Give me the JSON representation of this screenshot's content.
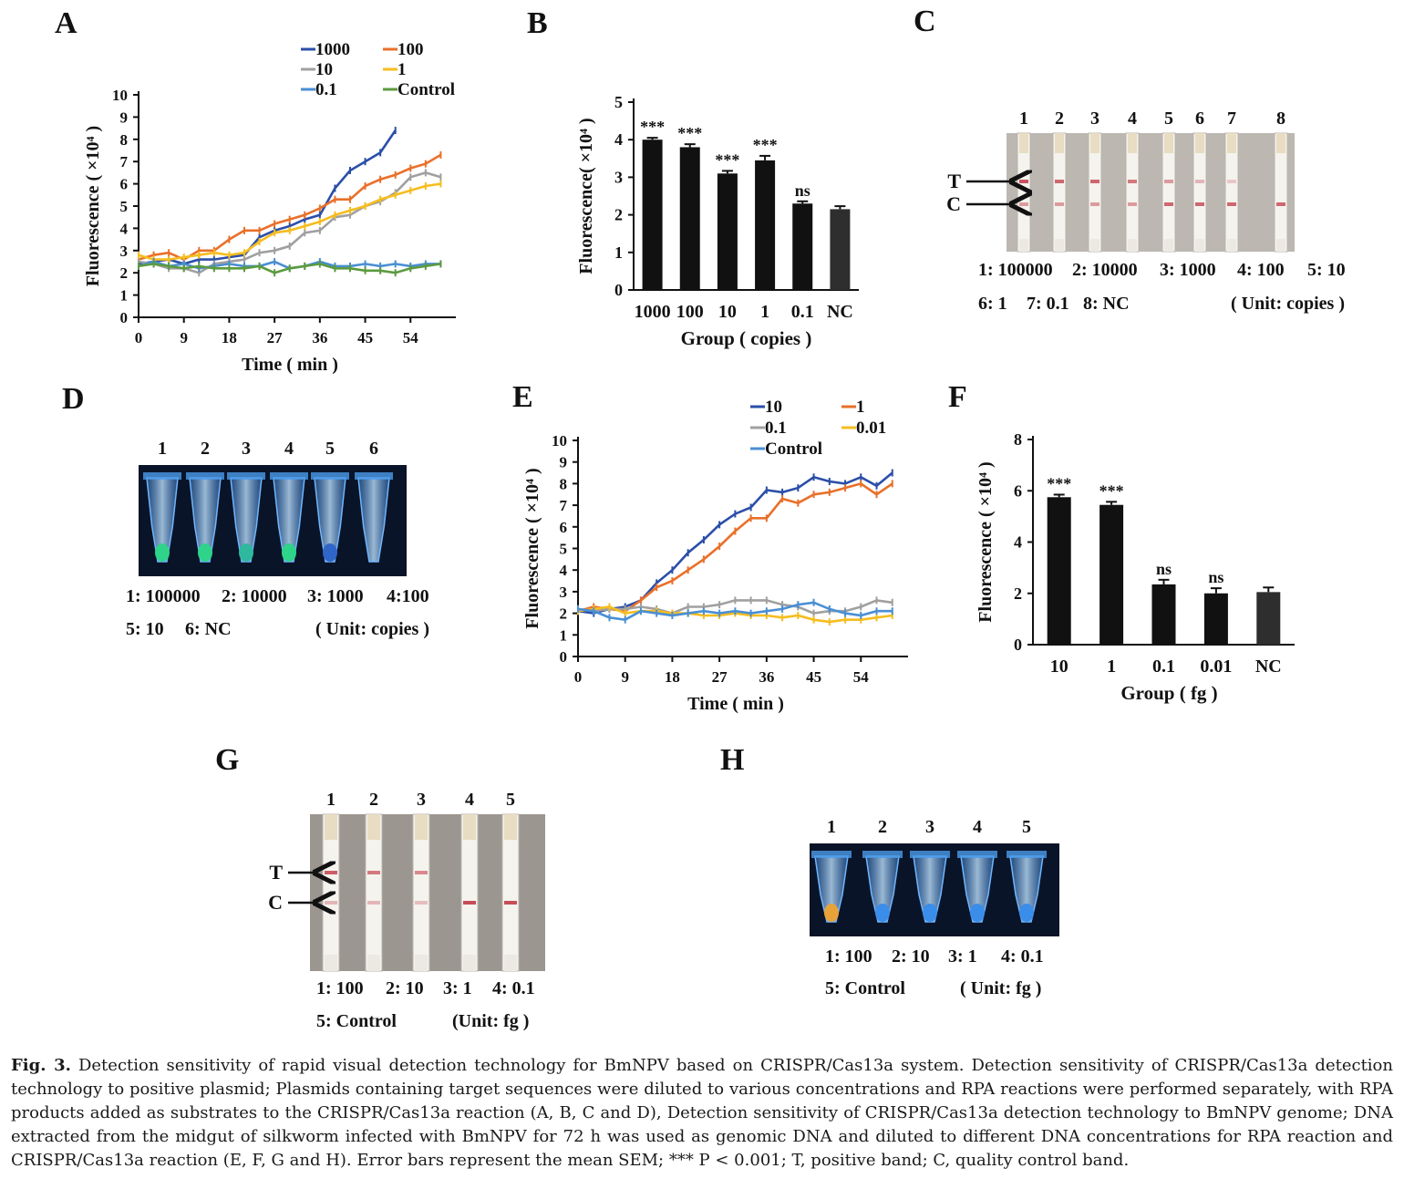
{
  "figure": {
    "panels": {
      "A": {
        "letter": "A",
        "chart_data": {
          "type": "line",
          "xlabel": "Time ( min )",
          "ylabel": "Fluorescence ( ×10⁴ )",
          "xlim": [
            0,
            63
          ],
          "ylim": [
            0,
            10
          ],
          "xticks": [
            0,
            9,
            18,
            27,
            36,
            45,
            54
          ],
          "yticks": [
            0,
            1,
            2,
            3,
            4,
            5,
            6,
            7,
            8,
            9,
            10
          ],
          "x": [
            0,
            3,
            6,
            9,
            12,
            15,
            18,
            21,
            24,
            27,
            30,
            33,
            36,
            39,
            42,
            45,
            48,
            51,
            54,
            57,
            60
          ],
          "series": [
            {
              "name": "1000",
              "color": "#2b4fa8",
              "values": [
                2.4,
                2.5,
                2.6,
                2.4,
                2.6,
                2.6,
                2.7,
                2.8,
                3.6,
                3.9,
                4.1,
                4.4,
                4.6,
                5.8,
                6.6,
                7.0,
                7.4,
                8.4,
                null,
                null,
                null
              ]
            },
            {
              "name": "100",
              "color": "#e9702a",
              "values": [
                2.6,
                2.8,
                2.9,
                2.6,
                3.0,
                3.0,
                3.5,
                3.9,
                3.9,
                4.2,
                4.4,
                4.6,
                4.9,
                5.3,
                5.3,
                5.9,
                6.2,
                6.4,
                6.7,
                6.9,
                7.3
              ]
            },
            {
              "name": "10",
              "color": "#a0a0a0",
              "values": [
                2.5,
                2.4,
                2.2,
                2.2,
                2.0,
                2.4,
                2.5,
                2.6,
                2.9,
                3.0,
                3.2,
                3.8,
                3.9,
                4.5,
                4.6,
                5.0,
                5.2,
                5.6,
                6.3,
                6.5,
                6.3
              ]
            },
            {
              "name": "1",
              "color": "#f5bd1f",
              "values": [
                2.8,
                2.6,
                2.6,
                2.7,
                2.8,
                2.9,
                2.8,
                2.9,
                3.4,
                3.8,
                3.9,
                4.1,
                4.3,
                4.6,
                4.8,
                5.0,
                5.3,
                5.5,
                5.7,
                5.9,
                6.0
              ]
            },
            {
              "name": "0.1",
              "color": "#4a8fd4",
              "values": [
                2.3,
                2.5,
                2.3,
                2.4,
                2.2,
                2.3,
                2.4,
                2.3,
                2.3,
                2.5,
                2.2,
                2.3,
                2.5,
                2.3,
                2.3,
                2.4,
                2.3,
                2.4,
                2.3,
                2.4,
                2.4
              ]
            },
            {
              "name": "Control",
              "color": "#5c9a3e",
              "values": [
                2.3,
                2.4,
                2.3,
                2.2,
                2.3,
                2.2,
                2.2,
                2.2,
                2.3,
                2.0,
                2.2,
                2.3,
                2.4,
                2.2,
                2.2,
                2.1,
                2.1,
                2.0,
                2.2,
                2.3,
                2.4
              ]
            }
          ]
        }
      },
      "B": {
        "letter": "B",
        "chart_data": {
          "type": "bar",
          "categories": [
            "1000",
            "100",
            "10",
            "1",
            "0.1",
            "NC"
          ],
          "values": [
            4.0,
            3.8,
            3.1,
            3.45,
            2.3,
            2.15
          ],
          "errors": [
            0.05,
            0.08,
            0.07,
            0.12,
            0.06,
            0.08
          ],
          "significance": [
            "***",
            "***",
            "***",
            "***",
            "ns",
            ""
          ],
          "xlabel": "Group ( copies )",
          "ylabel": "Fluorescence( ×10⁴ )",
          "ylim": [
            0,
            5
          ],
          "yticks": [
            0,
            1,
            2,
            3,
            4,
            5
          ]
        }
      },
      "C": {
        "letter": "C",
        "strip_numbers": [
          "1",
          "2",
          "3",
          "4",
          "5",
          "6",
          "7",
          "8"
        ],
        "arrow_t": "T",
        "arrow_c": "C",
        "legend_row1": [
          "1: 100000",
          "2: 10000",
          "3: 1000",
          "4: 100",
          "5: 10"
        ],
        "legend_row2": [
          "6: 1",
          "7: 0.1",
          "8: NC"
        ],
        "unit": "( Unit: copies )"
      },
      "D": {
        "letter": "D",
        "tube_numbers": [
          "1",
          "2",
          "3",
          "4",
          "5",
          "6"
        ],
        "legend_row1": [
          "1: 100000",
          "2: 10000",
          "3: 1000",
          "4:100"
        ],
        "legend_row2": [
          "5: 10",
          "6: NC"
        ],
        "unit": "( Unit: copies )"
      },
      "E": {
        "letter": "E",
        "chart_data": {
          "type": "line",
          "xlabel": "Time ( min )",
          "ylabel": "Fluorescence ( ×10⁴ )",
          "xlim": [
            0,
            63
          ],
          "ylim": [
            0,
            10
          ],
          "xticks": [
            0,
            9,
            18,
            27,
            36,
            45,
            54
          ],
          "yticks": [
            0,
            1,
            2,
            3,
            4,
            5,
            6,
            7,
            8,
            9,
            10
          ],
          "x": [
            0,
            3,
            6,
            9,
            12,
            15,
            18,
            21,
            24,
            27,
            30,
            33,
            36,
            39,
            42,
            45,
            48,
            51,
            54,
            57,
            60
          ],
          "series": [
            {
              "name": "10",
              "color": "#2b4fa8",
              "values": [
                2.1,
                2.0,
                2.2,
                2.3,
                2.6,
                3.4,
                4.0,
                4.8,
                5.4,
                6.1,
                6.6,
                6.9,
                7.7,
                7.6,
                7.8,
                8.3,
                8.1,
                8.0,
                8.3,
                7.9,
                8.5
              ]
            },
            {
              "name": "1",
              "color": "#e9702a",
              "values": [
                2.1,
                2.3,
                2.2,
                2.1,
                2.6,
                3.2,
                3.5,
                4.0,
                4.5,
                5.1,
                5.8,
                6.4,
                6.4,
                7.3,
                7.1,
                7.5,
                7.6,
                7.8,
                8.0,
                7.5,
                8.0
              ]
            },
            {
              "name": "0.1",
              "color": "#a0a0a0",
              "values": [
                2.2,
                2.1,
                2.2,
                2.2,
                2.3,
                2.2,
                2.0,
                2.3,
                2.3,
                2.4,
                2.6,
                2.6,
                2.6,
                2.4,
                2.3,
                2.0,
                2.1,
                2.1,
                2.3,
                2.6,
                2.5
              ]
            },
            {
              "name": "0.01",
              "color": "#f5bd1f",
              "values": [
                2.1,
                2.2,
                2.3,
                2.0,
                2.1,
                2.1,
                2.0,
                2.0,
                1.9,
                1.9,
                2.0,
                1.9,
                1.9,
                1.8,
                1.9,
                1.7,
                1.6,
                1.7,
                1.7,
                1.8,
                1.9
              ]
            },
            {
              "name": "Control",
              "color": "#4a8fd4",
              "values": [
                2.2,
                2.1,
                1.8,
                1.7,
                2.1,
                2.0,
                1.9,
                2.0,
                2.1,
                2.0,
                2.1,
                2.0,
                2.1,
                2.2,
                2.4,
                2.5,
                2.2,
                2.0,
                1.9,
                2.1,
                2.1
              ]
            }
          ]
        }
      },
      "F": {
        "letter": "F",
        "chart_data": {
          "type": "bar",
          "categories": [
            "10",
            "1",
            "0.1",
            "0.01",
            "NC"
          ],
          "values": [
            5.75,
            5.45,
            2.35,
            2.0,
            2.05
          ],
          "errors": [
            0.1,
            0.12,
            0.18,
            0.2,
            0.18
          ],
          "significance": [
            "***",
            "***",
            "ns",
            "ns",
            ""
          ],
          "xlabel": "Group ( fg )",
          "ylabel": "Fluorescence ( ×10⁴ )",
          "ylim": [
            0,
            8
          ],
          "yticks": [
            0,
            2,
            4,
            6,
            8
          ]
        }
      },
      "G": {
        "letter": "G",
        "strip_numbers": [
          "1",
          "2",
          "3",
          "4",
          "5"
        ],
        "arrow_t": "T",
        "arrow_c": "C",
        "legend_row1": [
          "1: 100",
          "2: 10",
          "3: 1",
          "4: 0.1"
        ],
        "legend_row2": [
          "5: Control"
        ],
        "unit": "(Unit: fg )"
      },
      "H": {
        "letter": "H",
        "tube_numbers": [
          "1",
          "2",
          "3",
          "4",
          "5"
        ],
        "legend_row1": [
          "1: 100",
          "2: 10",
          "3: 1",
          "4: 0.1"
        ],
        "legend_row2": [
          "5: Control"
        ],
        "unit": "( Unit: fg )"
      }
    },
    "caption": {
      "label": "Fig. 3.",
      "text": "Detection sensitivity of rapid visual detection technology for BmNPV based on CRISPR/Cas13a system. Detection sensitivity of CRISPR/Cas13a detection technology to positive plasmid; Plasmids containing target sequences were diluted to various concentrations and RPA reactions were performed separately, with RPA products added as substrates to the CRISPR/Cas13a reaction (A, B, C and D), Detection sensitivity of CRISPR/Cas13a detection technology to BmNPV genome; DNA extracted from the midgut of silkworm infected with BmNPV for 72 h was used as genomic DNA and diluted to different DNA concentrations for RPA reaction and CRISPR/Cas13a reaction (E, F, G and H). Error bars represent the mean SEM; *** P < 0.001; T, positive band; C, quality control band."
    }
  }
}
